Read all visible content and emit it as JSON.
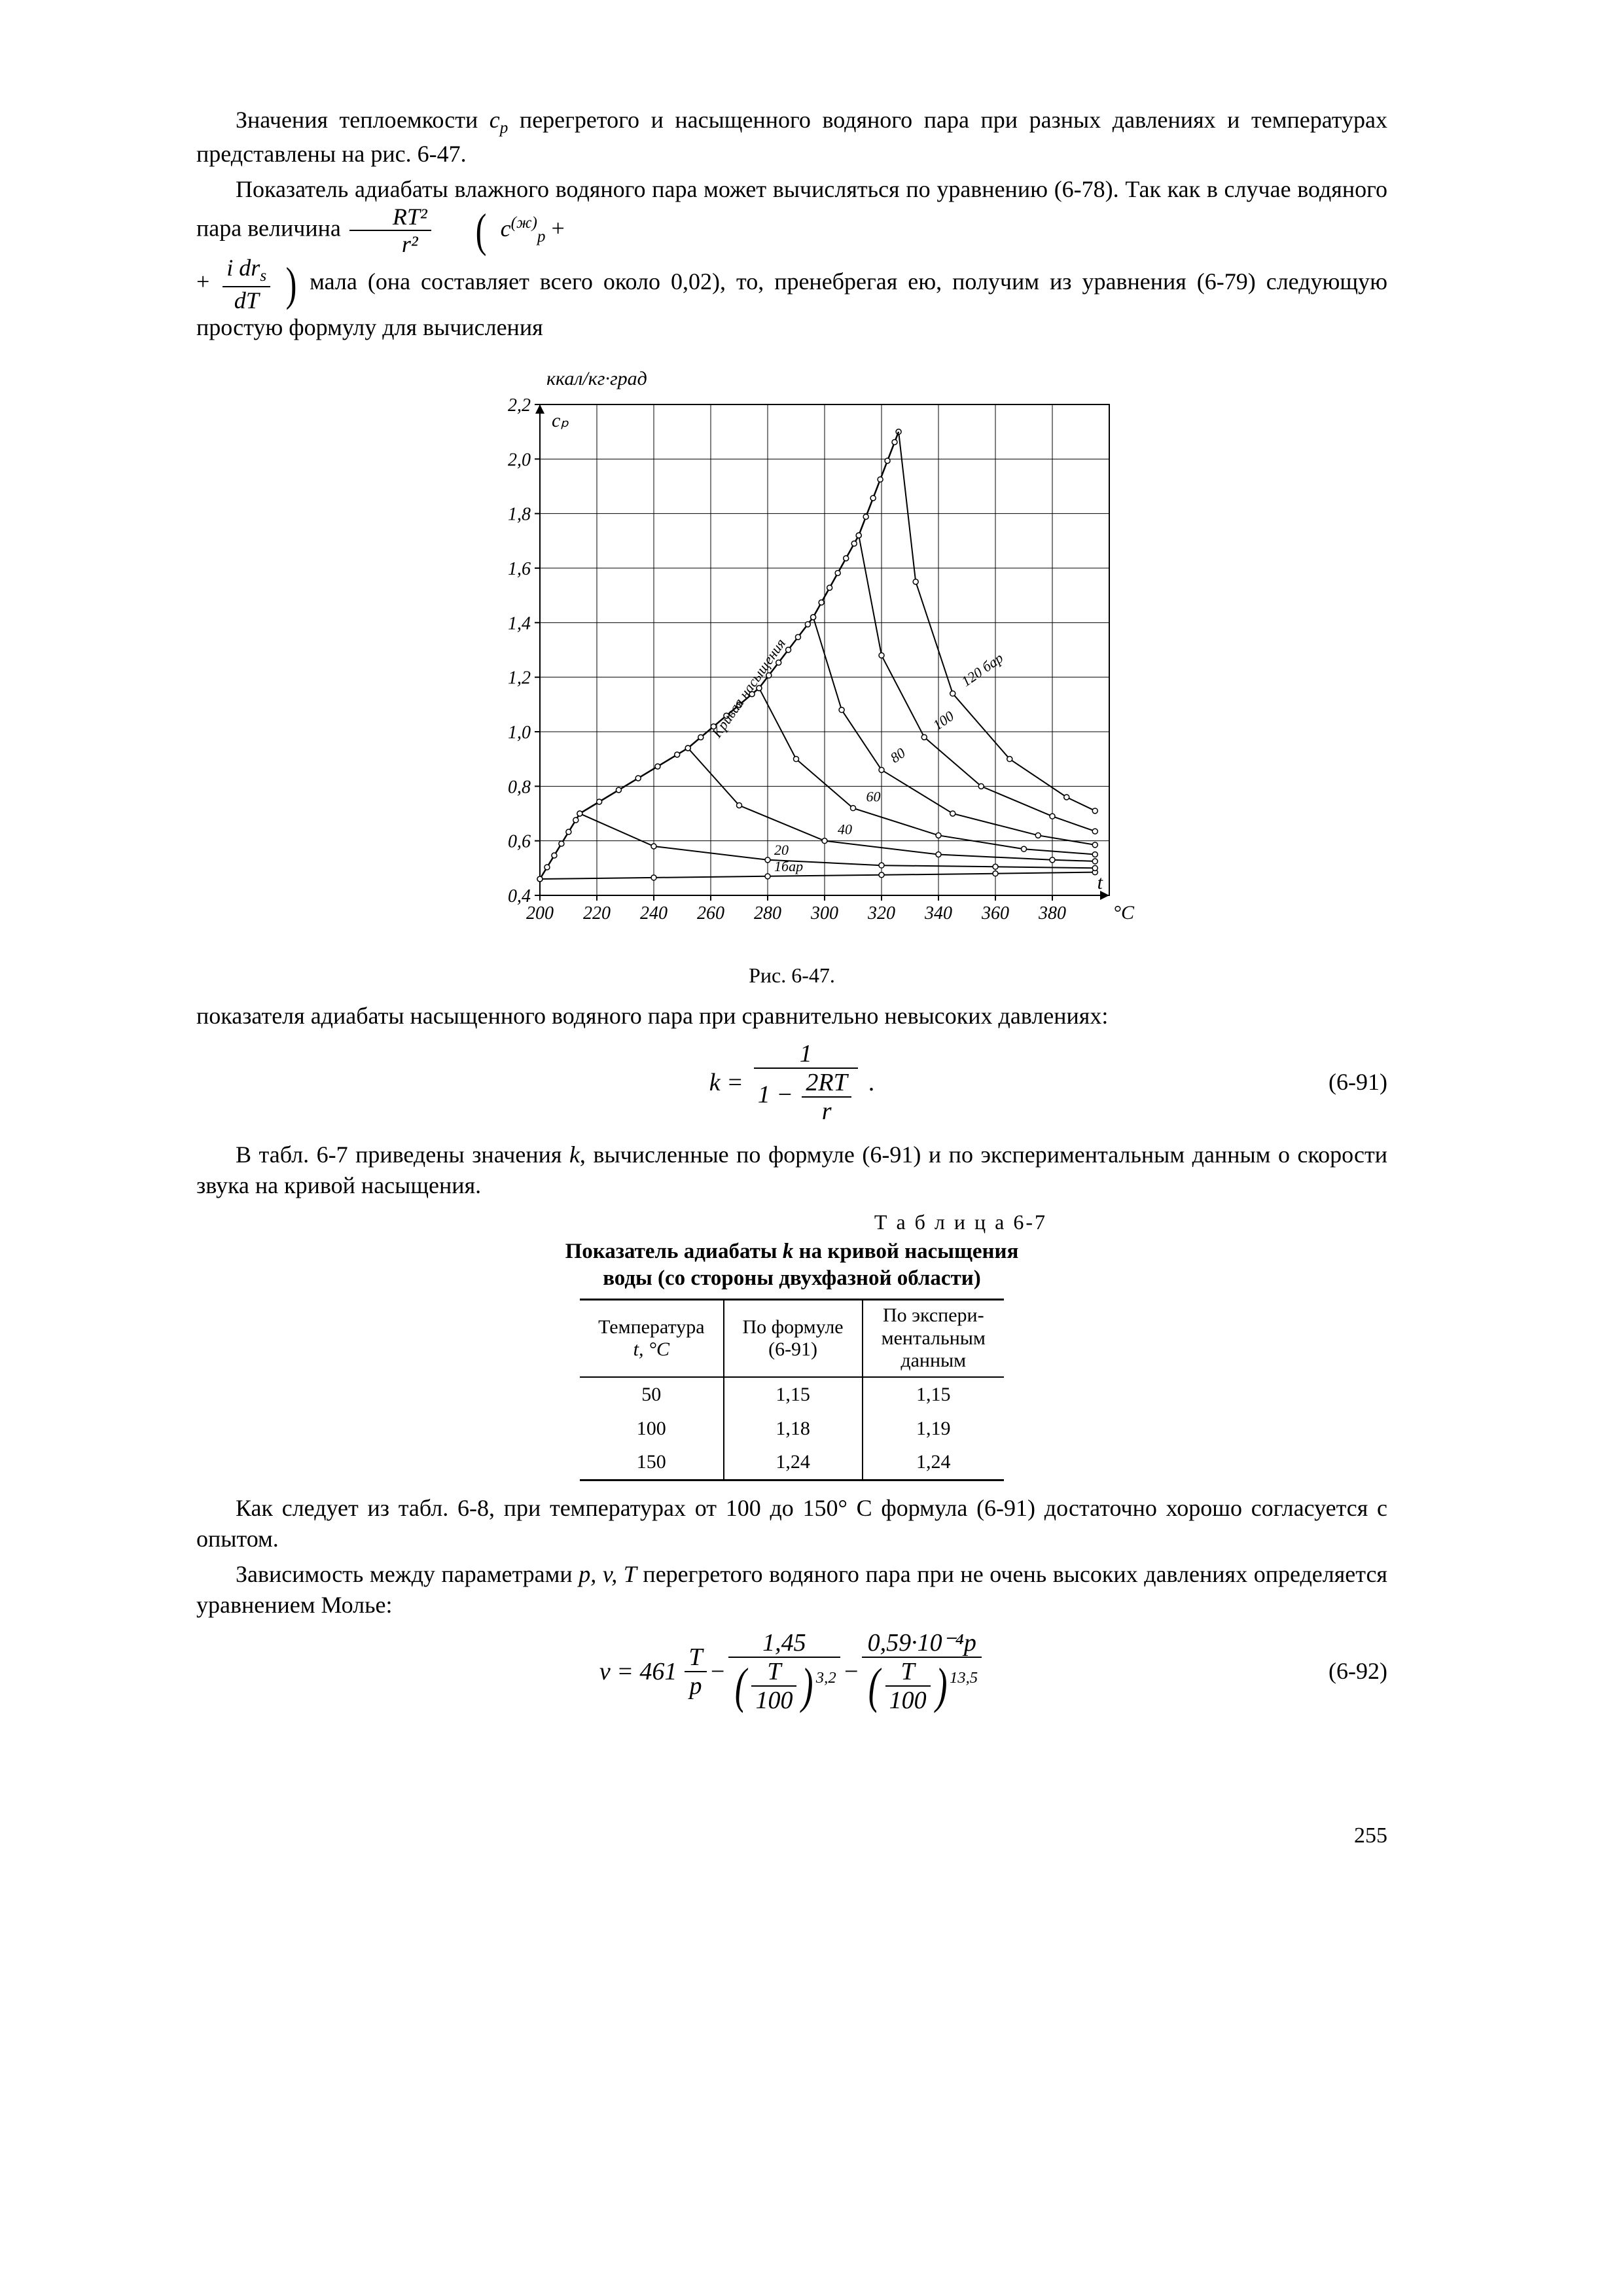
{
  "text": {
    "p1a": "Значения теплоемкости ",
    "p1b": " перегретого и насыщенного водяного па­ра при разных давлениях и температурах представлены на рис. 6-47.",
    "p2a": "Показатель адиабаты влажного водяного пара может вычисляться по уравнению (6-78). Так как в случае водяного пара величина ",
    "p2b": " мала (она составляет всего около 0,02), то, пренебрегая ею, по­лучим из уравнения (6-79) следующую простую формулу для вычисления",
    "fig_caption": "Рис. 6-47.",
    "p3": "показателя адиабаты насыщенного водяного пара при сравнительно невы­соких давлениях:",
    "eq91_num": "(6-91)",
    "p4a": "В табл. 6-7 приведены значения ",
    "p4b": ", вычисленные по формуле (6-91) и по экспериментальным данным о скорости звука на кривой насыще­ния.",
    "table_label": "Т а б л и ц а 6-7",
    "table_title_l1": "Показатель адиабаты ",
    "table_title_l2": " на кривой насыщения воды (со стороны двухфазной области)",
    "th1_l1": "Температура",
    "th1_l2": "t, °C",
    "th2_l1": "По формуле",
    "th2_l2": "(6-91)",
    "th3_l1": "По экспери-",
    "th3_l2": "ментальным",
    "th3_l3": "данным",
    "p5a": "Как следует из табл. 6-8, при температурах от 100 до 150° С фор­мула (6-91) достаточно хорошо согласуется с опытом.",
    "p6a": "Зависимость между параметрами ",
    "p6b": " перегретого водяного пара при не очень высоких давлениях определяется уравнением Молье:",
    "eq92_num": "(6-92)",
    "page_no": "255"
  },
  "formulas": {
    "cp": "c",
    "cp_sub": "p",
    "rt2_r2_num": "RT²",
    "rt2_r2_den": "r²",
    "c_zh": "c",
    "c_zh_sup": "(ж)",
    "c_zh_sub": "p",
    "idr_num": "i dr",
    "idr_sub": "s",
    "idr_den": "dT",
    "eq91_lhs": "k =",
    "eq91_num_top": "1",
    "eq91_den_lead": "1 −",
    "eq91_den_num": "2RT",
    "eq91_den_den": "r",
    "k_sym": "k",
    "pvT": "p, v, T",
    "eq92_lhs": "v = 461",
    "eq92_f1_num": "T",
    "eq92_f1_den": "p",
    "eq92_minus": " − ",
    "eq92_f2_num": "1,45",
    "eq92_f2_den_inner_num": "T",
    "eq92_f2_den_inner_den": "100",
    "eq92_f2_exp": "3,2",
    "eq92_f3_num": "0,59·10⁻⁴p",
    "eq92_f3_exp": "13,5"
  },
  "table": {
    "rows": [
      [
        "50",
        "1,15",
        "1,15"
      ],
      [
        "100",
        "1,18",
        "1,19"
      ],
      [
        "150",
        "1,24",
        "1,24"
      ]
    ]
  },
  "chart": {
    "type": "line",
    "title_y": "ккал/кг·град",
    "cp_label": "cₚ",
    "x_label": "t °C",
    "xlim": [
      200,
      400
    ],
    "ylim": [
      0.4,
      2.2
    ],
    "xticks": [
      200,
      220,
      240,
      260,
      280,
      300,
      320,
      340,
      360,
      380
    ],
    "yticks": [
      0.4,
      0.6,
      0.8,
      1.0,
      1.2,
      1.4,
      1.6,
      1.8,
      2.0,
      2.2
    ],
    "background_color": "#ffffff",
    "axis_color": "#000000",
    "grid_color": "#000000",
    "line_color": "#000000",
    "line_width": 2,
    "series": [
      {
        "label": "1бар",
        "points": [
          [
            200,
            0.46
          ],
          [
            240,
            0.465
          ],
          [
            280,
            0.47
          ],
          [
            320,
            0.475
          ],
          [
            360,
            0.48
          ],
          [
            395,
            0.485
          ]
        ]
      },
      {
        "label": "20",
        "points": [
          [
            214,
            0.7
          ],
          [
            240,
            0.58
          ],
          [
            280,
            0.53
          ],
          [
            320,
            0.51
          ],
          [
            360,
            0.505
          ],
          [
            395,
            0.5
          ]
        ]
      },
      {
        "label": "40",
        "points": [
          [
            252,
            0.94
          ],
          [
            270,
            0.73
          ],
          [
            300,
            0.6
          ],
          [
            340,
            0.55
          ],
          [
            380,
            0.53
          ],
          [
            395,
            0.525
          ]
        ]
      },
      {
        "label": "60",
        "points": [
          [
            277,
            1.16
          ],
          [
            290,
            0.9
          ],
          [
            310,
            0.72
          ],
          [
            340,
            0.62
          ],
          [
            370,
            0.57
          ],
          [
            395,
            0.55
          ]
        ]
      },
      {
        "label": "80",
        "points": [
          [
            296,
            1.42
          ],
          [
            306,
            1.08
          ],
          [
            320,
            0.86
          ],
          [
            345,
            0.7
          ],
          [
            375,
            0.62
          ],
          [
            395,
            0.585
          ]
        ]
      },
      {
        "label": "100",
        "points": [
          [
            312,
            1.72
          ],
          [
            320,
            1.28
          ],
          [
            335,
            0.98
          ],
          [
            355,
            0.8
          ],
          [
            380,
            0.69
          ],
          [
            395,
            0.635
          ]
        ]
      },
      {
        "label": "120 бар",
        "points": [
          [
            326,
            2.1
          ],
          [
            332,
            1.55
          ],
          [
            345,
            1.14
          ],
          [
            365,
            0.9
          ],
          [
            385,
            0.76
          ],
          [
            395,
            0.71
          ]
        ]
      }
    ],
    "saturation_label": "Кривая насыщения",
    "saturation_points": [
      [
        200,
        0.46
      ],
      [
        214,
        0.7
      ],
      [
        252,
        0.94
      ],
      [
        277,
        1.16
      ],
      [
        296,
        1.42
      ],
      [
        312,
        1.72
      ],
      [
        326,
        2.1
      ]
    ],
    "marker_radius": 4
  }
}
